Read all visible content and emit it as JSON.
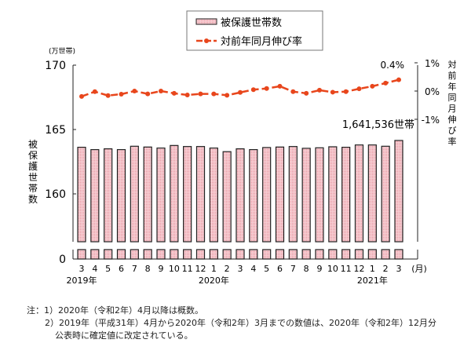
{
  "chart_data": {
    "type": "bar+line",
    "legend": {
      "bar_label": "被保護世帯数",
      "line_label": "対前年同月伸び率",
      "placement": "top-center"
    },
    "left_axis": {
      "unit": "(万世帯)",
      "title": "被保護世帯数",
      "ticks": [
        "170",
        "165",
        "160",
        "0"
      ],
      "ylim": [
        160,
        170
      ],
      "break": true
    },
    "right_axis": {
      "title": "対前年同月伸び率",
      "ticks": [
        "1%",
        "0%",
        "-1%"
      ],
      "ylim": [
        -1,
        1
      ]
    },
    "x_unit": "(月)",
    "categories": [
      "3",
      "4",
      "5",
      "6",
      "7",
      "8",
      "9",
      "10",
      "11",
      "12",
      "1",
      "2",
      "3",
      "4",
      "5",
      "6",
      "7",
      "8",
      "9",
      "10",
      "11",
      "12",
      "1",
      "2",
      "3"
    ],
    "year_labels": [
      {
        "label": "2019年",
        "index": 0
      },
      {
        "label": "2020年",
        "index": 10
      },
      {
        "label": "2021年",
        "index": 22
      }
    ],
    "series": [
      {
        "name": "被保護世帯数",
        "axis": "left",
        "values": [
          163.62,
          163.44,
          163.5,
          163.44,
          163.7,
          163.64,
          163.56,
          163.76,
          163.68,
          163.68,
          163.56,
          163.28,
          163.5,
          163.44,
          163.6,
          163.64,
          163.68,
          163.54,
          163.58,
          163.66,
          163.62,
          163.8,
          163.8,
          163.7,
          164.15
        ]
      },
      {
        "name": "対前年同月伸び率",
        "axis": "right",
        "values": [
          -0.19,
          -0.02,
          -0.16,
          -0.11,
          0.0,
          -0.1,
          0.0,
          -0.08,
          -0.14,
          -0.1,
          -0.1,
          -0.15,
          -0.05,
          0.05,
          0.09,
          0.17,
          -0.02,
          -0.08,
          0.03,
          -0.04,
          -0.02,
          0.08,
          0.17,
          0.28,
          0.4
        ]
      }
    ],
    "annotations": {
      "last_bar": "1,641,536世帯",
      "last_rate": "0.4%"
    },
    "colors": {
      "bar_fill": "#f4c2c8",
      "bar_stroke": "#222222",
      "line": "#e8461c"
    }
  },
  "notes": {
    "line1": "注：1）2020年（令和2年）4月以降は概数。",
    "line2": "2）2019年（平成31年）4月から2020年（令和2年）3月までの数値は、2020年（令和2年）12月分",
    "line3": "公表時に確定値に改定されている。"
  }
}
